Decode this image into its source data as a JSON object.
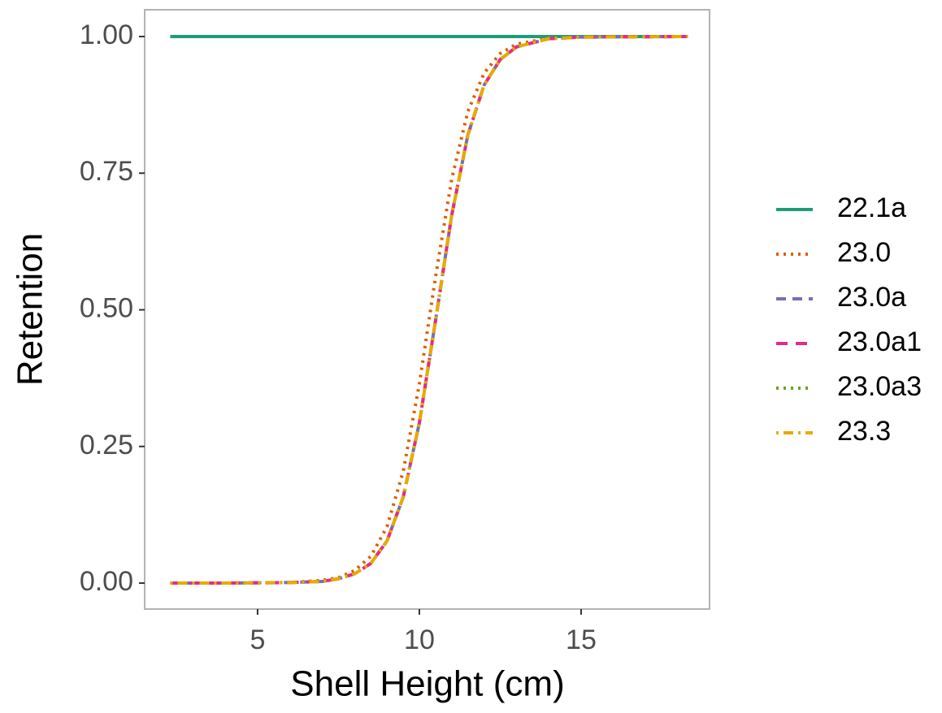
{
  "chart_data": {
    "type": "line",
    "xlabel": "Shell Height (cm)",
    "ylabel": "Retention",
    "x": [
      2.3,
      4,
      6,
      7,
      7.5,
      8,
      8.5,
      9,
      9.5,
      10,
      10.5,
      11,
      11.5,
      12,
      12.5,
      13,
      14,
      15,
      18.3
    ],
    "series": [
      {
        "name": "22.1a",
        "color": "#1b9e77",
        "linestyle": "solid",
        "values": [
          1,
          1,
          1,
          1,
          1,
          1,
          1,
          1,
          1,
          1,
          1,
          1,
          1,
          1,
          1,
          1,
          1,
          1,
          1
        ]
      },
      {
        "name": "23.0",
        "color": "#d95f02",
        "linestyle": "dotted",
        "values": [
          0,
          0,
          0.001,
          0.005,
          0.01,
          0.023,
          0.049,
          0.103,
          0.204,
          0.364,
          0.56,
          0.739,
          0.863,
          0.933,
          0.969,
          0.986,
          0.997,
          0.999,
          1
        ]
      },
      {
        "name": "23.0a",
        "color": "#7570b3",
        "linestyle": "dashed",
        "values": [
          0,
          0,
          0.001,
          0.003,
          0.008,
          0.017,
          0.036,
          0.077,
          0.157,
          0.293,
          0.48,
          0.673,
          0.82,
          0.911,
          0.958,
          0.981,
          0.996,
          0.999,
          1
        ]
      },
      {
        "name": "23.0a1",
        "color": "#e7298a",
        "linestyle": "longdash",
        "values": [
          0,
          0,
          0.001,
          0.003,
          0.008,
          0.017,
          0.036,
          0.077,
          0.157,
          0.293,
          0.48,
          0.673,
          0.82,
          0.911,
          0.958,
          0.981,
          0.996,
          0.999,
          1
        ]
      },
      {
        "name": "23.0a3",
        "color": "#66a61e",
        "linestyle": "dotted",
        "values": [
          0,
          0,
          0.001,
          0.003,
          0.008,
          0.017,
          0.036,
          0.077,
          0.157,
          0.293,
          0.48,
          0.673,
          0.82,
          0.911,
          0.958,
          0.981,
          0.996,
          0.999,
          1
        ]
      },
      {
        "name": "23.3",
        "color": "#e6ab02",
        "linestyle": "dotdash",
        "values": [
          0,
          0,
          0.001,
          0.003,
          0.008,
          0.017,
          0.036,
          0.077,
          0.157,
          0.293,
          0.48,
          0.673,
          0.82,
          0.911,
          0.958,
          0.981,
          0.996,
          0.999,
          1
        ]
      }
    ],
    "xlim": [
      1.51,
      18.97
    ],
    "xticks": [
      5,
      10,
      15
    ],
    "ylim": [
      -0.0475,
      1.049
    ],
    "yticks": [
      {
        "value": 0,
        "label": "0.00"
      },
      {
        "value": 0.25,
        "label": "0.25"
      },
      {
        "value": 0.5,
        "label": "0.50"
      },
      {
        "value": 0.75,
        "label": "0.75"
      },
      {
        "value": 1,
        "label": "1.00"
      }
    ],
    "grid": false,
    "legend": "right"
  }
}
